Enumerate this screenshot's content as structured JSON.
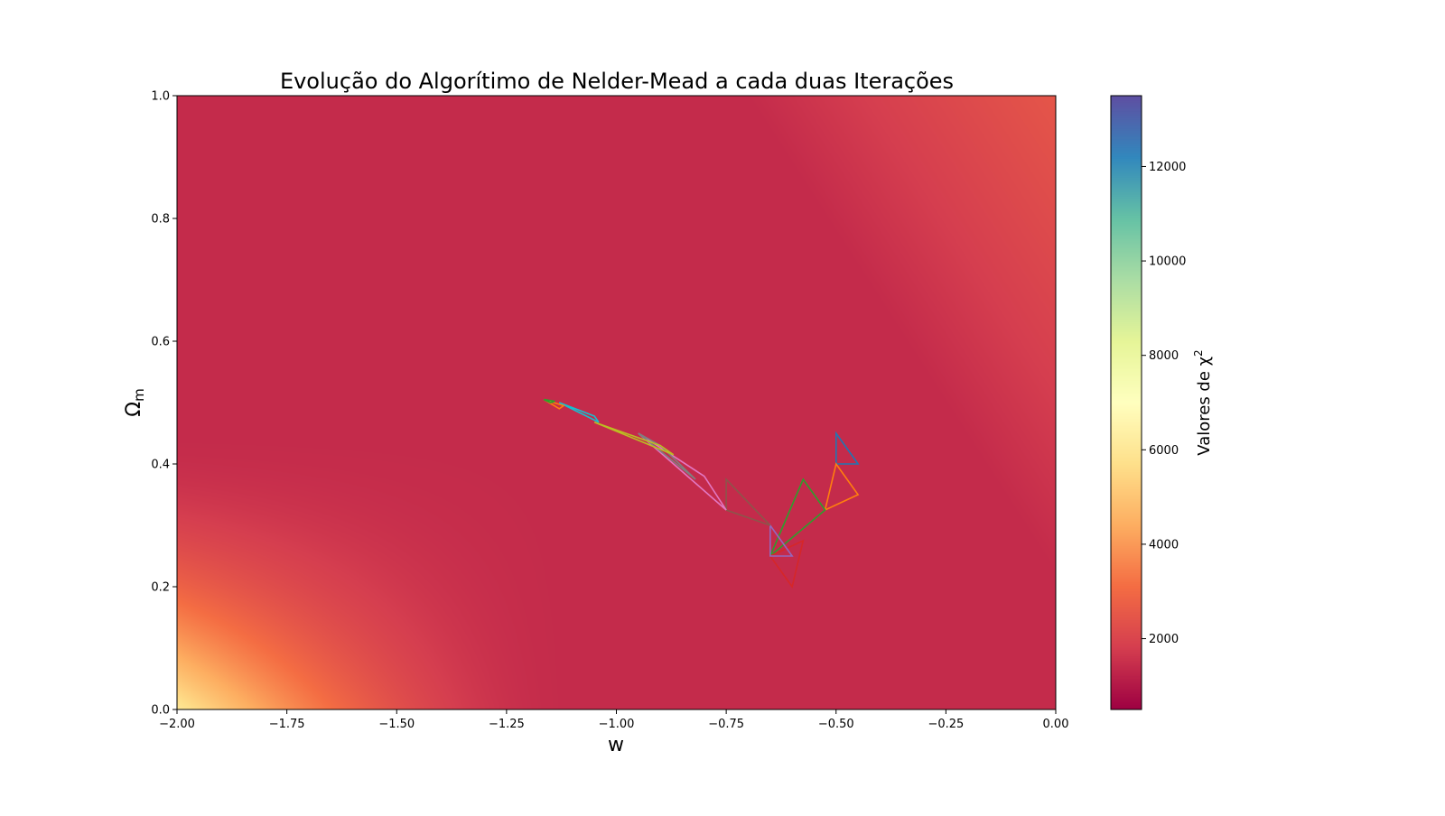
{
  "chart_data": {
    "type": "heatmap",
    "title": "Evolução do Algorítimo de Nelder-Mead a cada duas Iterações",
    "xlabel": "w",
    "ylabel": "Ω",
    "ylabel_sub": "m",
    "colorbar_label": "Valores de χ",
    "colorbar_label_sup": "2",
    "colormap": "Spectral",
    "xlim": [
      -2.0,
      0.0
    ],
    "ylim": [
      0.0,
      1.0
    ],
    "colorbar_range": [
      500,
      13500
    ],
    "x_ticks": [
      "−2.00",
      "−1.75",
      "−1.50",
      "−1.25",
      "−1.00",
      "−0.75",
      "−0.50",
      "−0.25",
      "0.00"
    ],
    "x_tick_values": [
      -2.0,
      -1.75,
      -1.5,
      -1.25,
      -1.0,
      -0.75,
      -0.5,
      -0.25,
      0.0
    ],
    "y_ticks": [
      "0.0",
      "0.2",
      "0.4",
      "0.6",
      "0.8",
      "1.0"
    ],
    "y_tick_values": [
      0.0,
      0.2,
      0.4,
      0.6,
      0.8,
      1.0
    ],
    "colorbar_ticks": [
      "2000",
      "4000",
      "6000",
      "8000",
      "10000",
      "12000"
    ],
    "colorbar_tick_values": [
      2000,
      4000,
      6000,
      8000,
      10000,
      12000
    ],
    "series": [
      {
        "color": "#1f77b4",
        "points": [
          [
            -0.5,
            0.45
          ],
          [
            -0.5,
            0.4
          ],
          [
            -0.45,
            0.4
          ]
        ]
      },
      {
        "color": "#ff7f0e",
        "points": [
          [
            -0.5,
            0.4
          ],
          [
            -0.525,
            0.325
          ],
          [
            -0.45,
            0.35
          ]
        ]
      },
      {
        "color": "#2ca02c",
        "points": [
          [
            -0.575,
            0.375
          ],
          [
            -0.525,
            0.325
          ],
          [
            -0.65,
            0.25
          ]
        ]
      },
      {
        "color": "#d62728",
        "points": [
          [
            -0.575,
            0.275
          ],
          [
            -0.6,
            0.2
          ],
          [
            -0.65,
            0.25
          ]
        ]
      },
      {
        "color": "#9467bd",
        "points": [
          [
            -0.65,
            0.3
          ],
          [
            -0.65,
            0.25
          ],
          [
            -0.6,
            0.25
          ]
        ]
      },
      {
        "color": "#8c564b",
        "points": [
          [
            -0.75,
            0.375
          ],
          [
            -0.75,
            0.325
          ],
          [
            -0.65,
            0.3
          ]
        ]
      },
      {
        "color": "#e377c2",
        "points": [
          [
            -0.95,
            0.45
          ],
          [
            -0.8,
            0.38
          ],
          [
            -0.75,
            0.325
          ]
        ]
      },
      {
        "color": "#7f7f7f",
        "points": [
          [
            -0.95,
            0.45
          ],
          [
            -0.82,
            0.375
          ],
          [
            -0.9,
            0.43
          ]
        ]
      },
      {
        "color": "#bcbd22",
        "points": [
          [
            -1.05,
            0.468
          ],
          [
            -0.9,
            0.43
          ],
          [
            -0.87,
            0.415
          ]
        ]
      },
      {
        "color": "#17becf",
        "points": [
          [
            -1.13,
            0.5
          ],
          [
            -1.05,
            0.478
          ],
          [
            -1.04,
            0.468
          ]
        ]
      },
      {
        "color": "#ff7f0e",
        "points": [
          [
            -1.165,
            0.505
          ],
          [
            -1.12,
            0.495
          ],
          [
            -1.13,
            0.49
          ]
        ]
      },
      {
        "color": "#2ca02c",
        "points": [
          [
            -1.165,
            0.505
          ],
          [
            -1.14,
            0.502
          ],
          [
            -1.15,
            0.5
          ]
        ]
      }
    ]
  }
}
